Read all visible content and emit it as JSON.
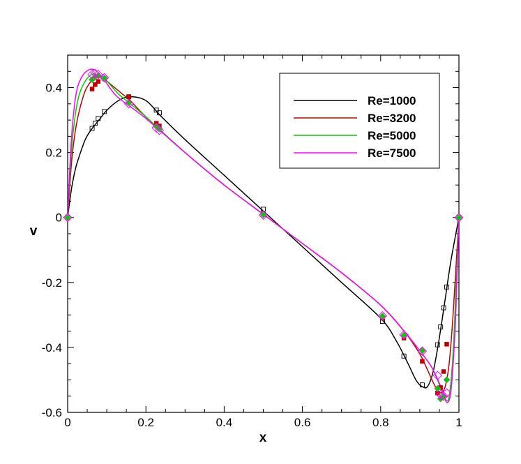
{
  "chart_data": {
    "type": "line",
    "xlabel": "x",
    "ylabel": "v",
    "xlim": [
      0,
      1
    ],
    "ylim": [
      -0.6,
      0.5
    ],
    "xticks": [
      0,
      0.2,
      0.4,
      0.6,
      0.8,
      1
    ],
    "xtick_labels": [
      "0",
      "0.2",
      "0.4",
      "0.6",
      "0.8",
      "1"
    ],
    "yticks": [
      -0.6,
      -0.4,
      -0.2,
      0,
      0.2,
      0.4
    ],
    "ytick_labels": [
      "-0.6",
      "-0.4",
      "-0.2",
      "0",
      "0.2",
      "0.4"
    ],
    "legend_position": "top-right",
    "grid": false,
    "series": [
      {
        "name": "Re=1000",
        "color": "#000000",
        "marker": "open-square",
        "x": [
          0,
          0.01,
          0.02,
          0.03,
          0.045,
          0.06,
          0.08,
          0.1,
          0.13,
          0.16,
          0.2,
          0.24,
          0.3,
          0.4,
          0.5,
          0.6,
          0.7,
          0.8,
          0.84,
          0.87,
          0.89,
          0.905,
          0.92,
          0.935,
          0.95,
          0.965,
          0.98,
          1
        ],
        "y": [
          0,
          0.09,
          0.15,
          0.19,
          0.24,
          0.27,
          0.3,
          0.33,
          0.36,
          0.372,
          0.36,
          0.31,
          0.24,
          0.13,
          0.02,
          -0.09,
          -0.2,
          -0.31,
          -0.38,
          -0.45,
          -0.5,
          -0.52,
          -0.52,
          -0.47,
          -0.37,
          -0.25,
          -0.13,
          0
        ],
        "markers_x": [
          0,
          0.0625,
          0.0703,
          0.0781,
          0.0938,
          0.1563,
          0.2266,
          0.2344,
          0.5,
          0.8047,
          0.8594,
          0.9063,
          0.9453,
          0.9531,
          0.9609,
          0.9688,
          1
        ],
        "markers_y": [
          0,
          0.2745,
          0.2902,
          0.3049,
          0.3262,
          0.3717,
          0.3306,
          0.3223,
          0.0254,
          -0.3197,
          -0.4265,
          -0.5155,
          -0.3919,
          -0.3371,
          -0.2779,
          -0.2139,
          0
        ]
      },
      {
        "name": "Re=3200",
        "color": "#c00000",
        "marker": "filled-square",
        "x": [
          0,
          0.01,
          0.02,
          0.03,
          0.045,
          0.06,
          0.075,
          0.09,
          0.11,
          0.14,
          0.16,
          0.2,
          0.3,
          0.4,
          0.5,
          0.6,
          0.7,
          0.8,
          0.86,
          0.9,
          0.92,
          0.935,
          0.945,
          0.955,
          0.965,
          0.975,
          0.985,
          1
        ],
        "y": [
          0,
          0.17,
          0.27,
          0.33,
          0.39,
          0.42,
          0.435,
          0.43,
          0.41,
          0.38,
          0.36,
          0.31,
          0.2,
          0.1,
          0.01,
          -0.08,
          -0.17,
          -0.27,
          -0.35,
          -0.42,
          -0.47,
          -0.51,
          -0.53,
          -0.54,
          -0.52,
          -0.45,
          -0.3,
          0
        ],
        "markers_x": [
          0,
          0.0625,
          0.0703,
          0.0781,
          0.0938,
          0.1563,
          0.2266,
          0.2344,
          0.5,
          0.8047,
          0.8594,
          0.9063,
          0.9453,
          0.9531,
          0.9609,
          0.9688,
          1
        ],
        "markers_y": [
          0,
          0.3956,
          0.4092,
          0.4191,
          0.4277,
          0.3712,
          0.2903,
          0.2819,
          0.0091,
          -0.3099,
          -0.3712,
          -0.4428,
          -0.5405,
          -0.5236,
          -0.4743,
          -0.3902,
          0
        ]
      },
      {
        "name": "Re=5000",
        "color": "#00cc00",
        "marker": "filled-diamond",
        "x": [
          0,
          0.01,
          0.02,
          0.03,
          0.045,
          0.06,
          0.07,
          0.08,
          0.1,
          0.13,
          0.16,
          0.2,
          0.3,
          0.4,
          0.5,
          0.6,
          0.7,
          0.8,
          0.86,
          0.9,
          0.93,
          0.945,
          0.955,
          0.965,
          0.975,
          0.985,
          0.993,
          1
        ],
        "y": [
          0,
          0.21,
          0.32,
          0.38,
          0.42,
          0.44,
          0.442,
          0.438,
          0.42,
          0.38,
          0.35,
          0.31,
          0.2,
          0.1,
          0.01,
          -0.08,
          -0.17,
          -0.27,
          -0.35,
          -0.41,
          -0.46,
          -0.5,
          -0.53,
          -0.56,
          -0.55,
          -0.42,
          -0.2,
          0
        ],
        "markers_x": [
          0,
          0.0625,
          0.0703,
          0.0781,
          0.0938,
          0.1563,
          0.2266,
          0.2344,
          0.5,
          0.8047,
          0.8594,
          0.9063,
          0.9453,
          0.9531,
          0.9609,
          0.9688,
          1
        ],
        "markers_y": [
          0,
          0.4245,
          0.4333,
          0.4365,
          0.4295,
          0.3537,
          0.2807,
          0.2728,
          0.0082,
          -0.3037,
          -0.3626,
          -0.4103,
          -0.5264,
          -0.5583,
          -0.5506,
          -0.4998,
          0
        ]
      },
      {
        "name": "Re=7500",
        "color": "#ff00ff",
        "marker": "open-diamond",
        "x": [
          0,
          0.008,
          0.016,
          0.025,
          0.04,
          0.055,
          0.065,
          0.075,
          0.09,
          0.12,
          0.15,
          0.2,
          0.3,
          0.4,
          0.5,
          0.6,
          0.7,
          0.8,
          0.86,
          0.9,
          0.93,
          0.95,
          0.96,
          0.97,
          0.98,
          0.99,
          0.996,
          1
        ],
        "y": [
          0,
          0.21,
          0.33,
          0.4,
          0.44,
          0.455,
          0.456,
          0.45,
          0.43,
          0.38,
          0.35,
          0.305,
          0.2,
          0.1,
          0.01,
          -0.08,
          -0.17,
          -0.27,
          -0.35,
          -0.41,
          -0.46,
          -0.51,
          -0.54,
          -0.57,
          -0.53,
          -0.35,
          -0.15,
          0
        ],
        "markers_x": [
          0,
          0.0625,
          0.0703,
          0.0781,
          0.0938,
          0.1563,
          0.2266,
          0.2344,
          0.5,
          0.8047,
          0.8594,
          0.9063,
          0.9453,
          0.9531,
          0.9609,
          0.9688,
          1
        ],
        "markers_y": [
          0,
          0.4402,
          0.4432,
          0.4405,
          0.4307,
          0.3502,
          0.2759,
          0.2681,
          0.0071,
          -0.3026,
          -0.3613,
          -0.4115,
          -0.4865,
          -0.5455,
          -0.5501,
          -0.5402,
          0
        ]
      }
    ]
  }
}
